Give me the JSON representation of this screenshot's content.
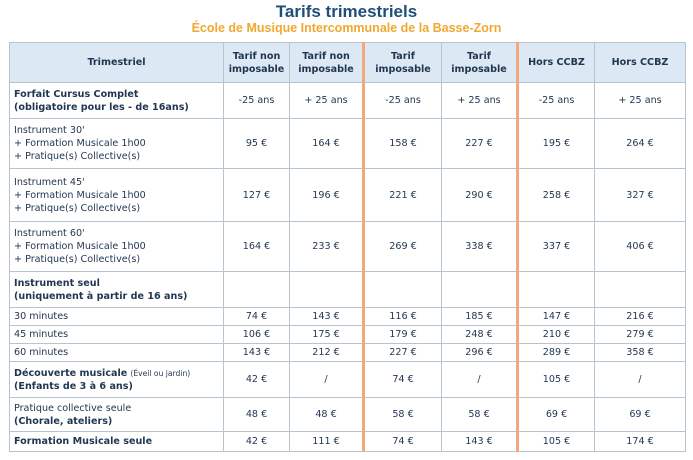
{
  "title": "Tarifs trimestriels",
  "subtitle": "École de Musique Intercommunale de la Basse-Zorn",
  "header": {
    "col0": "Trimestriel",
    "cols": [
      [
        "Tarif non",
        "imposable"
      ],
      [
        "Tarif non",
        "imposable"
      ],
      [
        "Tarif",
        "imposable"
      ],
      [
        "Tarif",
        "imposable"
      ],
      [
        "Hors CCBZ"
      ],
      [
        "Hors CCBZ"
      ]
    ]
  },
  "rows": [
    {
      "lines": [
        {
          "t": "Forfait Cursus Complet",
          "b": true
        },
        {
          "t": "(obligatoire pour les - de 16ans)",
          "b": true
        }
      ],
      "values": [
        "-25 ans",
        "+ 25 ans",
        "-25 ans",
        "+ 25 ans",
        "-25 ans",
        "+ 25 ans"
      ],
      "h": 36
    },
    {
      "lines": [
        {
          "t": "Instrument 30'"
        },
        {
          "t": "+ Formation Musicale 1h00"
        },
        {
          "t": "+ Pratique(s) Collective(s)"
        }
      ],
      "values": [
        "95 €",
        "164 €",
        "158 €",
        "227 €",
        "195 €",
        "264 €"
      ],
      "h": 50
    },
    {
      "lines": [
        {
          "t": "Instrument 45'"
        },
        {
          "t": "+ Formation Musicale 1h00"
        },
        {
          "t": "+ Pratique(s) Collective(s)"
        }
      ],
      "values": [
        "127 €",
        "196 €",
        "221 €",
        "290 €",
        "258 €",
        "327 €"
      ],
      "h": 53
    },
    {
      "lines": [
        {
          "t": "Instrument 60'"
        },
        {
          "t": "+ Formation Musicale 1h00"
        },
        {
          "t": "+ Pratique(s) Collective(s)"
        }
      ],
      "values": [
        "164 €",
        "233 €",
        "269 €",
        "338 €",
        "337 €",
        "406 €"
      ],
      "h": 50
    },
    {
      "lines": [
        {
          "t": "Instrument seul",
          "b": true
        },
        {
          "t": "(uniquement à partir de 16 ans)",
          "b": true
        }
      ],
      "values": [
        "",
        "",
        "",
        "",
        "",
        ""
      ],
      "h": 36
    },
    {
      "lines": [
        {
          "t": "30 minutes"
        }
      ],
      "values": [
        "74 €",
        "143 €",
        "116 €",
        "185 €",
        "147 €",
        "216 €"
      ],
      "h": 18
    },
    {
      "lines": [
        {
          "t": "45 minutes"
        }
      ],
      "values": [
        "106 €",
        "175 €",
        "179 €",
        "248 €",
        "210 €",
        "279 €"
      ],
      "h": 18
    },
    {
      "lines": [
        {
          "t": "60 minutes"
        }
      ],
      "values": [
        "143 €",
        "212 €",
        "227 €",
        "296 €",
        "289 €",
        "358 €"
      ],
      "h": 18
    },
    {
      "lines": [
        {
          "t": "Découverte musicale",
          "b": true,
          "small": "(Éveil ou jardin)"
        },
        {
          "t": "(Enfants de 3 à 6 ans)",
          "b": true
        }
      ],
      "values": [
        "42 €",
        "/",
        "74 €",
        "/",
        "105 €",
        "/"
      ],
      "h": 36
    },
    {
      "lines": [
        {
          "t": "Pratique collective seule"
        },
        {
          "t": "(Chorale, ateliers)",
          "b": true
        }
      ],
      "values": [
        "48 €",
        "48 €",
        "58 €",
        "58 €",
        "69 €",
        "69 €"
      ],
      "h": 34
    },
    {
      "lines": [
        {
          "t": "Formation Musicale seule",
          "b": true
        }
      ],
      "values": [
        "42 €",
        "111 €",
        "74 €",
        "143 €",
        "105 €",
        "174 €"
      ],
      "h": 20
    }
  ]
}
